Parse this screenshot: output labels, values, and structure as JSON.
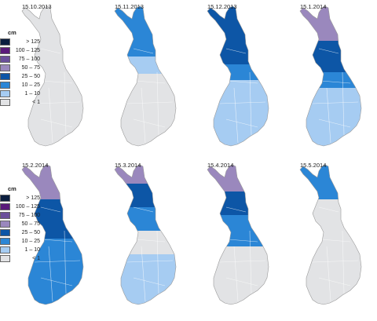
{
  "unit": "cm",
  "classes": [
    {
      "label": "> 125",
      "color": "#0b1e3f"
    },
    {
      "label": "100 – 125",
      "color": "#5a1a7a"
    },
    {
      "label": "75 – 100",
      "color": "#6a4f9a"
    },
    {
      "label": "50 – 75",
      "color": "#9a88bd"
    },
    {
      "label": "25 – 50",
      "color": "#0d56a6"
    },
    {
      "label": "10 – 25",
      "color": "#2b86d6"
    },
    {
      "label": "1 – 10",
      "color": "#a6ccf2"
    },
    {
      "label": "< 1",
      "color": "#e2e3e5"
    }
  ],
  "border_color": "#c8c8c8",
  "maps": [
    {
      "date": "15.10.2013"
    },
    {
      "date": "15.11.2013"
    },
    {
      "date": "15.12.2013"
    },
    {
      "date": "15.1.2014"
    },
    {
      "date": "15.2.2014"
    },
    {
      "date": "15.3.2014"
    },
    {
      "date": "15.4.2014"
    },
    {
      "date": "15.5.2014"
    }
  ]
}
